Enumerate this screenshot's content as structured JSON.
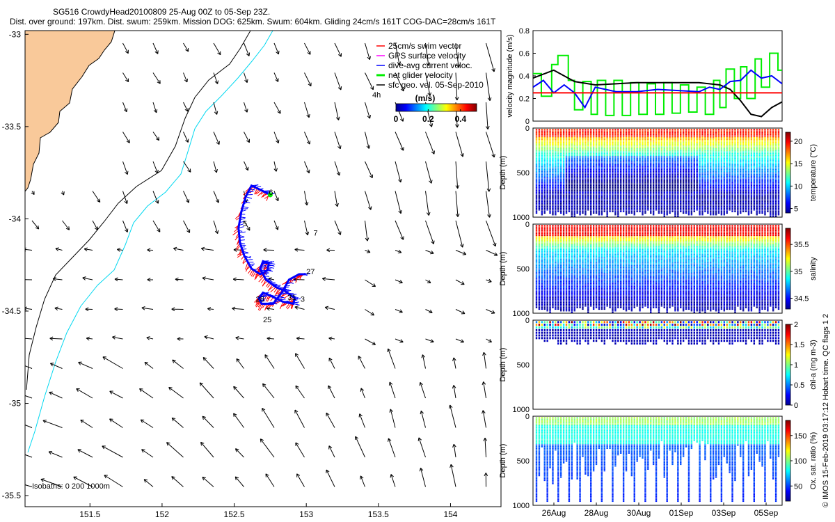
{
  "header": {
    "line1": "SG516 CrowdyHead20100809 25-Aug 00Z to 05-Sep 23Z.",
    "line2": "Dist. over ground: 197km. Dist. swum: 259km. Mission DOG: 625km. Swum: 604km. Gliding 24cm/s 161T COG-DAC=28cm/s 161T"
  },
  "footer_note": "© IMOS 15-Feb-2019 03:17:12 Hobart time. QC flags 1  2",
  "colors": {
    "land": "#f9c99a",
    "coast": "#000000",
    "isobath_200": "#000000",
    "isobath_1000": "#00d8f0",
    "track_red": "#ff0000",
    "track_blue": "#0000ff",
    "green": "#00ee00"
  },
  "chart_data": [
    {
      "type": "scatter",
      "name_id": "map",
      "xlim": [
        151.05,
        154.35
      ],
      "ylim": [
        -35.56,
        -32.98
      ],
      "xticks": [
        151.5,
        152,
        152.5,
        153,
        153.5,
        154
      ],
      "yticks": [
        -33,
        -33.5,
        -34,
        -34.5,
        -35,
        -35.5
      ],
      "legend": {
        "placement": "top-right",
        "entries": [
          {
            "label": "25cm/s swim vector",
            "color": "#ff0000"
          },
          {
            "label": "GPS surface velocity",
            "color": "#ff00ff"
          },
          {
            "label": "dive-avg current veloc.",
            "color": "#0000ff"
          },
          {
            "label": "net glider velocity",
            "color": "#00ee00"
          },
          {
            "label": "sfc geo. vel. 05-Sep-2010",
            "color": "#000000"
          }
        ],
        "extra": "4h"
      },
      "colorbar": {
        "label": "(m/s)",
        "ticks": [
          "0",
          "0.2",
          "0.4"
        ],
        "range": [
          0,
          0.5
        ]
      },
      "isobaths_label": "Isobaths: 0   200  1000m",
      "track_labels": [
        {
          "text": "6",
          "x": 152.74,
          "y": -33.87
        },
        {
          "text": "5",
          "x": 152.56,
          "y": -34.04
        },
        {
          "text": "7",
          "x": 153.05,
          "y": -34.09
        },
        {
          "text": "27",
          "x": 153.0,
          "y": -34.3
        },
        {
          "text": "28",
          "x": 152.65,
          "y": -34.45
        },
        {
          "text": "31",
          "x": 152.87,
          "y": -34.44
        },
        {
          "text": "3",
          "x": 152.96,
          "y": -34.45
        },
        {
          "text": "25",
          "x": 152.7,
          "y": -34.56
        }
      ],
      "track": [
        {
          "x": 152.75,
          "y": -33.87
        },
        {
          "x": 152.7,
          "y": -33.85
        },
        {
          "x": 152.62,
          "y": -33.82
        },
        {
          "x": 152.58,
          "y": -33.88
        },
        {
          "x": 152.55,
          "y": -33.96
        },
        {
          "x": 152.53,
          "y": -34.05
        },
        {
          "x": 152.54,
          "y": -34.13
        },
        {
          "x": 152.57,
          "y": -34.2
        },
        {
          "x": 152.62,
          "y": -34.27
        },
        {
          "x": 152.68,
          "y": -34.3
        },
        {
          "x": 152.73,
          "y": -34.28
        },
        {
          "x": 152.74,
          "y": -34.24
        },
        {
          "x": 152.7,
          "y": -34.23
        },
        {
          "x": 152.68,
          "y": -34.27
        },
        {
          "x": 152.72,
          "y": -34.33
        },
        {
          "x": 152.79,
          "y": -34.37
        },
        {
          "x": 152.85,
          "y": -34.39
        },
        {
          "x": 152.92,
          "y": -34.43
        },
        {
          "x": 152.91,
          "y": -34.46
        },
        {
          "x": 152.84,
          "y": -34.45
        },
        {
          "x": 152.76,
          "y": -34.42
        },
        {
          "x": 152.7,
          "y": -34.4
        },
        {
          "x": 152.67,
          "y": -34.43
        },
        {
          "x": 152.69,
          "y": -34.46
        },
        {
          "x": 152.77,
          "y": -34.46
        },
        {
          "x": 152.83,
          "y": -34.4
        },
        {
          "x": 152.88,
          "y": -34.33
        },
        {
          "x": 152.95,
          "y": -34.3
        },
        {
          "x": 152.99,
          "y": -34.3
        }
      ]
    },
    {
      "type": "line",
      "name_id": "velocity",
      "ylabel": "velocity magnitude (m/s)",
      "ylim": [
        0,
        0.8
      ],
      "yticks": [
        0,
        0.2,
        0.4,
        0.6,
        0.8
      ],
      "xlim": [
        0,
        12
      ],
      "series": [
        {
          "color": "#00ee00",
          "x": [
            0,
            0.4,
            0.4,
            0.9,
            0.9,
            1.2,
            1.2,
            1.7,
            1.7,
            2.0,
            2.0,
            2.4,
            2.4,
            2.8,
            2.8,
            3.1,
            3.1,
            3.5,
            3.5,
            3.9,
            3.9,
            4.3,
            4.3,
            4.7,
            4.7,
            5.1,
            5.1,
            5.5,
            5.5,
            5.9,
            5.9,
            6.3,
            6.3,
            6.7,
            6.7,
            7.1,
            7.1,
            7.5,
            7.5,
            7.9,
            7.9,
            8.3,
            8.3,
            8.7,
            8.7,
            9.0,
            9.0,
            9.3,
            9.3,
            9.7,
            9.7,
            10.0,
            10.0,
            10.3,
            10.3,
            10.7,
            10.7,
            11.0,
            11.0,
            11.4,
            11.4,
            11.8,
            11.8,
            12.0
          ],
          "y": [
            0.42,
            0.42,
            0.22,
            0.22,
            0.5,
            0.5,
            0.58,
            0.58,
            0.36,
            0.36,
            0.1,
            0.1,
            0.35,
            0.35,
            0.06,
            0.06,
            0.36,
            0.36,
            0.05,
            0.05,
            0.36,
            0.36,
            0.05,
            0.05,
            0.34,
            0.34,
            0.06,
            0.06,
            0.33,
            0.33,
            0.06,
            0.06,
            0.34,
            0.34,
            0.07,
            0.07,
            0.32,
            0.32,
            0.08,
            0.08,
            0.3,
            0.3,
            0.06,
            0.06,
            0.36,
            0.36,
            0.12,
            0.12,
            0.46,
            0.46,
            0.2,
            0.2,
            0.48,
            0.48,
            0.2,
            0.2,
            0.55,
            0.55,
            0.3,
            0.3,
            0.6,
            0.6,
            0.45,
            0.45
          ]
        },
        {
          "color": "#000000",
          "x": [
            0,
            1,
            2,
            3,
            4,
            5,
            6,
            7,
            8,
            9,
            9.5,
            10,
            10.5,
            11,
            11.5,
            12
          ],
          "y": [
            0.38,
            0.45,
            0.35,
            0.32,
            0.33,
            0.34,
            0.34,
            0.34,
            0.34,
            0.32,
            0.28,
            0.18,
            0.06,
            0.04,
            0.12,
            0.17
          ]
        },
        {
          "color": "#0000ff",
          "x": [
            0,
            0.5,
            1,
            1.5,
            2,
            2.5,
            3,
            3.5,
            4,
            5,
            6,
            7,
            8,
            8.5,
            9,
            9.5,
            10,
            10.5,
            11,
            11.5,
            12
          ],
          "y": [
            0.3,
            0.36,
            0.25,
            0.32,
            0.25,
            0.12,
            0.3,
            0.28,
            0.26,
            0.26,
            0.28,
            0.27,
            0.26,
            0.3,
            0.28,
            0.35,
            0.36,
            0.45,
            0.38,
            0.4,
            0.33
          ]
        },
        {
          "color": "#ff0000",
          "x": [
            0,
            12
          ],
          "y": [
            0.25,
            0.25
          ]
        }
      ]
    },
    {
      "type": "heatmap",
      "name_id": "temperature",
      "ylabel": "Depth (m)",
      "clabel": "temperature (°C)",
      "ylim": [
        0,
        1000
      ],
      "yticks": [
        "0",
        "500",
        "1000"
      ],
      "cticks": [
        "5",
        "10",
        "15",
        "20"
      ],
      "crange": [
        4,
        22
      ]
    },
    {
      "type": "heatmap",
      "name_id": "salinity",
      "ylabel": "Depth (m)",
      "clabel": "salinity",
      "ylim": [
        0,
        1000
      ],
      "yticks": [
        "0",
        "500",
        "1000"
      ],
      "cticks": [
        "34.5",
        "35",
        "35.5"
      ],
      "crange": [
        34.3,
        35.8
      ]
    },
    {
      "type": "heatmap",
      "name_id": "chla",
      "ylabel": "Depth (m)",
      "clabel": "chl-a (mg m-3)",
      "ylim": [
        0,
        1000
      ],
      "yticks": [
        "0",
        "500",
        "1000"
      ],
      "cticks": [
        "0",
        "0.5",
        "1",
        "1.5",
        "2"
      ],
      "crange": [
        0,
        2
      ]
    },
    {
      "type": "heatmap",
      "name_id": "oxygen",
      "ylabel": "Depth (m)",
      "clabel": "Ox. sat. ratio (%)",
      "ylim": [
        0,
        1000
      ],
      "yticks": [
        "0",
        "500",
        "1000"
      ],
      "cticks": [
        "50",
        "100",
        "150"
      ],
      "crange": [
        20,
        180
      ],
      "xticks": [
        "26Aug",
        "28Aug",
        "30Aug",
        "01Sep",
        "03Sep",
        "05Sep"
      ]
    }
  ]
}
